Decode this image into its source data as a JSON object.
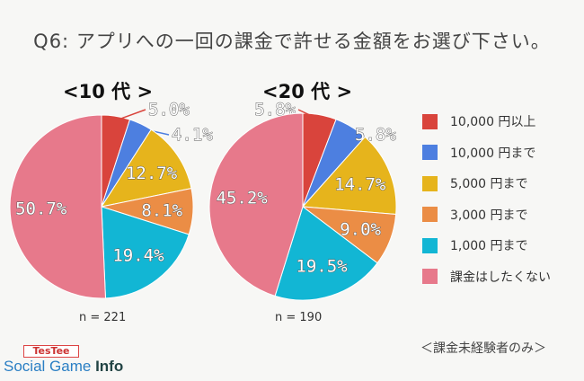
{
  "title": "Q6: アプリへの一回の課金で許せる金額をお選び下さい。",
  "footnote": "＜課金未経験者のみ＞",
  "logo": {
    "badge": "TesTee",
    "text_main": "Social Game",
    "text_bold": "Info"
  },
  "colors": [
    "#d9443c",
    "#4d7fe0",
    "#e6b41c",
    "#eb8d45",
    "#12b6d4",
    "#e7798b"
  ],
  "chart_data": [
    {
      "type": "pie",
      "title": "<10 代 >",
      "n": "n = 221",
      "categories": [
        "10,000 円以上",
        "10,000 円まで",
        "5,000 円まで",
        "3,000 円まで",
        "1,000 円まで",
        "課金はしたくない"
      ],
      "values": [
        5.0,
        4.1,
        12.7,
        8.1,
        19.4,
        50.7
      ],
      "labels": [
        "5.0%",
        "4.1%",
        "12.7%",
        "8.1%",
        "19.4%",
        "50.7%"
      ]
    },
    {
      "type": "pie",
      "title": "<20 代 >",
      "n": "n = 190",
      "categories": [
        "10,000 円以上",
        "10,000 円まで",
        "5,000 円まで",
        "3,000 円まで",
        "1,000 円まで",
        "課金はしたくない"
      ],
      "values": [
        5.8,
        5.8,
        14.7,
        9.0,
        19.5,
        45.2
      ],
      "labels": [
        "5.8%",
        "5.8%",
        "14.7%",
        "9.0%",
        "19.5%",
        "45.2%"
      ]
    }
  ],
  "legend": [
    "10,000 円以上",
    "10,000 円まで",
    "5,000 円まで",
    "3,000 円まで",
    "1,000 円まで",
    "課金はしたくない"
  ]
}
